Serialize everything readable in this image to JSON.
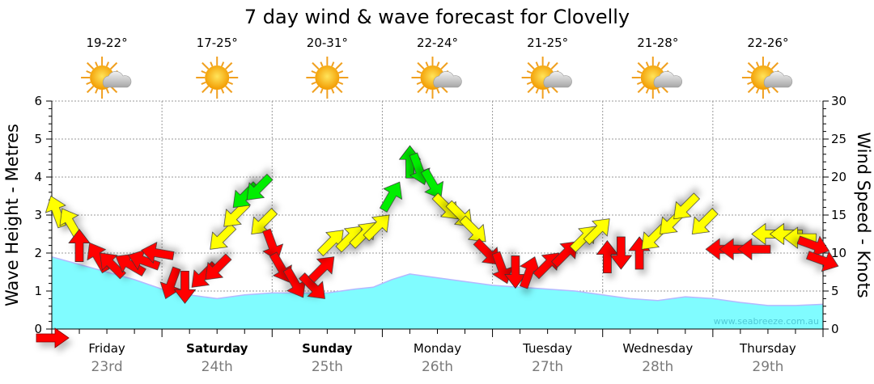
{
  "chart_data": {
    "type": "area",
    "title": "7 day wind & wave forecast for Clovelly",
    "ylabel": "Wave Height - Metres",
    "y2label": "Wind Speed - Knots",
    "ylim": [
      0,
      6
    ],
    "y2lim": [
      0,
      30
    ],
    "yticks": [
      "0",
      "1",
      "2",
      "3",
      "4",
      "5",
      "6"
    ],
    "y2ticks": [
      "0",
      "5",
      "10",
      "15",
      "20",
      "25",
      "30"
    ],
    "watermark": "www.seabreeze.com.au",
    "hours_total": 168,
    "days": [
      {
        "day": "Friday",
        "date": "23rd",
        "bold": false,
        "temp": "19-22°",
        "icon": "partly-cloudy"
      },
      {
        "day": "Saturday",
        "date": "24th",
        "bold": true,
        "temp": "17-25°",
        "icon": "sunny"
      },
      {
        "day": "Sunday",
        "date": "25th",
        "bold": true,
        "temp": "20-31°",
        "icon": "sunny"
      },
      {
        "day": "Monday",
        "date": "26th",
        "bold": false,
        "temp": "22-24°",
        "icon": "partly-cloudy"
      },
      {
        "day": "Tuesday",
        "date": "27th",
        "bold": false,
        "temp": "21-25°",
        "icon": "partly-cloudy"
      },
      {
        "day": "Wednesday",
        "date": "28th",
        "bold": false,
        "temp": "21-28°",
        "icon": "partly-cloudy"
      },
      {
        "day": "Thursday",
        "date": "29th",
        "bold": false,
        "temp": "22-26°",
        "icon": "partly-cloudy"
      }
    ],
    "wave_series": {
      "name": "Wave Height (m)",
      "hours": [
        0,
        6,
        12,
        18,
        24,
        30,
        36,
        42,
        48,
        54,
        60,
        66,
        70,
        74,
        78,
        84,
        90,
        96,
        102,
        108,
        114,
        120,
        126,
        132,
        138,
        144,
        150,
        156,
        162,
        168
      ],
      "values": [
        1.9,
        1.7,
        1.5,
        1.3,
        1.05,
        0.9,
        0.8,
        0.9,
        0.95,
        0.95,
        0.95,
        1.05,
        1.1,
        1.3,
        1.45,
        1.35,
        1.25,
        1.15,
        1.1,
        1.05,
        1.0,
        0.9,
        0.8,
        0.75,
        0.85,
        0.8,
        0.7,
        0.62,
        0.62,
        0.65
      ]
    },
    "wind_series": {
      "name": "Wind Speed (knots) & direction",
      "colors": {
        "light": "#ff0000",
        "moderate": "#ffff00",
        "strong": "#00ee00"
      },
      "thresholds": [
        11.5,
        17
      ],
      "points": [
        {
          "h": 1,
          "kn": 15.5,
          "dir": -20
        },
        {
          "h": 4,
          "kn": 14,
          "dir": -30
        },
        {
          "h": 6,
          "kn": 11,
          "dir": 0
        },
        {
          "h": 10,
          "kn": 9.5,
          "dir": -30
        },
        {
          "h": 13,
          "kn": 8.5,
          "dir": -45
        },
        {
          "h": 17,
          "kn": 8.5,
          "dir": -60
        },
        {
          "h": 20,
          "kn": 9,
          "dir": -70
        },
        {
          "h": 23,
          "kn": 10,
          "dir": -80
        },
        {
          "h": 26,
          "kn": 6,
          "dir": 200
        },
        {
          "h": 29,
          "kn": 5.5,
          "dir": 180
        },
        {
          "h": 33,
          "kn": 7,
          "dir": 225
        },
        {
          "h": 36,
          "kn": 8,
          "dir": 225
        },
        {
          "h": 37,
          "kn": 12,
          "dir": 225
        },
        {
          "h": 40,
          "kn": 15,
          "dir": 225
        },
        {
          "h": 42,
          "kn": 17.5,
          "dir": 225
        },
        {
          "h": 45,
          "kn": 18.5,
          "dir": 225
        },
        {
          "h": 46,
          "kn": 14,
          "dir": 225
        },
        {
          "h": 48,
          "kn": 11,
          "dir": 160
        },
        {
          "h": 50,
          "kn": 8,
          "dir": 150
        },
        {
          "h": 53,
          "kn": 6,
          "dir": 150
        },
        {
          "h": 57,
          "kn": 5.5,
          "dir": 135
        },
        {
          "h": 59,
          "kn": 8,
          "dir": 45
        },
        {
          "h": 61,
          "kn": 11.5,
          "dir": 45
        },
        {
          "h": 65,
          "kn": 12,
          "dir": 45
        },
        {
          "h": 68,
          "kn": 12.5,
          "dir": 45
        },
        {
          "h": 71,
          "kn": 13.5,
          "dir": 45
        },
        {
          "h": 74,
          "kn": 17.5,
          "dir": 30
        },
        {
          "h": 78,
          "kn": 22,
          "dir": 0
        },
        {
          "h": 80,
          "kn": 21,
          "dir": 160
        },
        {
          "h": 83,
          "kn": 19,
          "dir": 150
        },
        {
          "h": 86,
          "kn": 16,
          "dir": 135
        },
        {
          "h": 89,
          "kn": 15,
          "dir": 135
        },
        {
          "h": 92,
          "kn": 13,
          "dir": 135
        },
        {
          "h": 95,
          "kn": 10,
          "dir": 135
        },
        {
          "h": 98,
          "kn": 8,
          "dir": 160
        },
        {
          "h": 101,
          "kn": 7.5,
          "dir": 180
        },
        {
          "h": 104,
          "kn": 7.5,
          "dir": 20
        },
        {
          "h": 108,
          "kn": 8.5,
          "dir": 45
        },
        {
          "h": 112,
          "kn": 10,
          "dir": 45
        },
        {
          "h": 116,
          "kn": 12,
          "dir": 45
        },
        {
          "h": 119,
          "kn": 13,
          "dir": 45
        },
        {
          "h": 121,
          "kn": 9.5,
          "dir": 0
        },
        {
          "h": 124,
          "kn": 10,
          "dir": 180
        },
        {
          "h": 128,
          "kn": 10,
          "dir": 0
        },
        {
          "h": 131,
          "kn": 12,
          "dir": 225
        },
        {
          "h": 135,
          "kn": 14,
          "dir": 225
        },
        {
          "h": 138,
          "kn": 16,
          "dir": 225
        },
        {
          "h": 142,
          "kn": 14,
          "dir": 225
        },
        {
          "h": 146,
          "kn": 10.5,
          "dir": 270
        },
        {
          "h": 149,
          "kn": 10.5,
          "dir": 270
        },
        {
          "h": 153,
          "kn": 10.5,
          "dir": 270
        },
        {
          "h": 156,
          "kn": 12.5,
          "dir": 270
        },
        {
          "h": 160,
          "kn": 12.5,
          "dir": 270
        },
        {
          "h": 163,
          "kn": 12,
          "dir": 270
        },
        {
          "h": 166,
          "kn": 11,
          "dir": 110
        },
        {
          "h": 168,
          "kn": 9,
          "dir": 110
        }
      ]
    },
    "grid": true
  }
}
